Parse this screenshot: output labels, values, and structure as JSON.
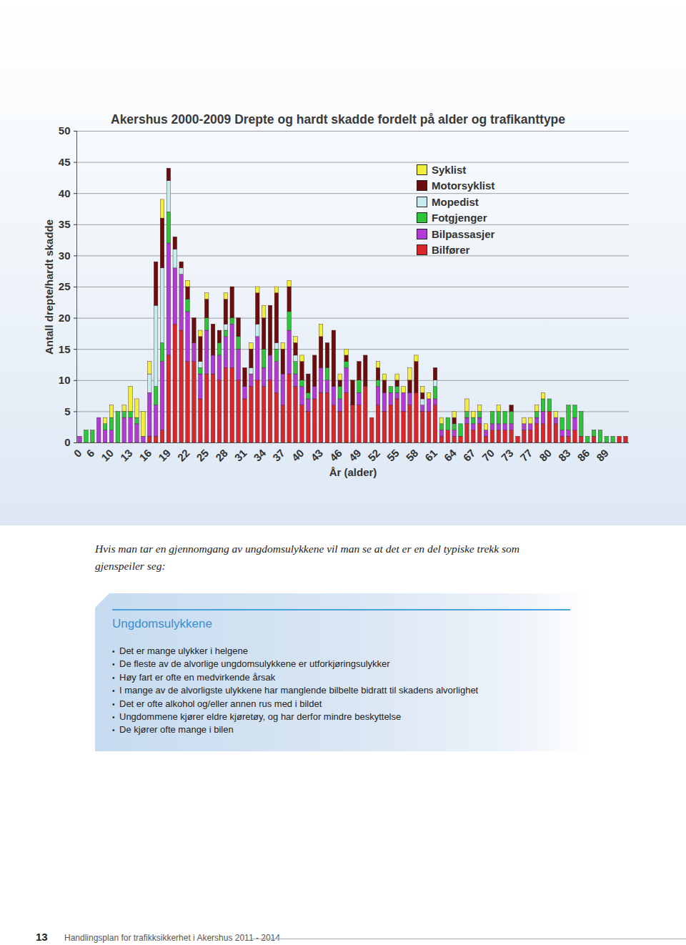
{
  "chart_data": {
    "type": "bar",
    "title": "Akershus 2000-2009 Drepte og hardt skadde fordelt på alder og trafikanttype",
    "ylabel": "Antall drepte/hardt skadde",
    "xlabel": "År (alder)",
    "categories": [
      "0",
      null,
      "6",
      null,
      null,
      "10",
      null,
      null,
      "13",
      null,
      null,
      "16",
      null,
      null,
      "19",
      null,
      null,
      "22",
      null,
      null,
      "25",
      null,
      null,
      "28",
      null,
      null,
      "31",
      null,
      null,
      "34",
      null,
      null,
      "37",
      null,
      null,
      "40",
      null,
      null,
      "43",
      null,
      null,
      "46",
      null,
      null,
      "49",
      null,
      null,
      "52",
      null,
      null,
      "55",
      null,
      null,
      "58",
      null,
      null,
      "61",
      null,
      null,
      "64",
      null,
      null,
      "67",
      null,
      null,
      "70",
      null,
      null,
      "73",
      null,
      null,
      "77",
      null,
      null,
      "80",
      null,
      null,
      "83",
      null,
      null,
      "86",
      null,
      null,
      "89",
      null,
      null,
      null
    ],
    "series": [
      {
        "name": "Bilfører",
        "color": "#d8262b",
        "values": [
          0,
          0,
          0,
          0,
          0,
          0,
          0,
          0,
          0,
          0,
          0,
          1,
          1,
          2,
          14,
          19,
          18,
          13,
          13,
          7,
          11,
          11,
          10,
          12,
          12,
          10,
          7,
          9,
          10,
          9,
          10,
          8,
          6,
          11,
          9,
          6,
          5,
          7,
          8,
          8,
          6,
          5,
          8,
          6,
          6,
          9,
          4,
          6,
          5,
          6,
          7,
          5,
          6,
          8,
          5,
          5,
          6,
          1,
          2,
          1,
          1,
          3,
          2,
          3,
          1,
          2,
          2,
          2,
          2,
          1,
          2,
          2,
          3,
          3,
          5,
          3,
          1,
          1,
          2,
          1,
          0,
          1,
          0,
          0,
          0,
          1,
          1
        ]
      },
      {
        "name": "Bilpassasjer",
        "color": "#b23ad6",
        "values": [
          1,
          0,
          0,
          4,
          2,
          2,
          0,
          4,
          4,
          3,
          1,
          7,
          5,
          11,
          18,
          9,
          9,
          8,
          3,
          4,
          7,
          3,
          4,
          5,
          7,
          5,
          2,
          2,
          7,
          3,
          4,
          5,
          5,
          7,
          2,
          3,
          2,
          2,
          4,
          2,
          3,
          2,
          4,
          0,
          2,
          0,
          0,
          3,
          3,
          2,
          1,
          3,
          2,
          0,
          1,
          2,
          1,
          1,
          0,
          1,
          0,
          1,
          1,
          1,
          1,
          1,
          1,
          1,
          1,
          0,
          1,
          1,
          1,
          2,
          0,
          1,
          1,
          1,
          2,
          0,
          0,
          0,
          0,
          0,
          0,
          0,
          0
        ]
      },
      {
        "name": "Fotgjenger",
        "color": "#2ec43c",
        "values": [
          0,
          2,
          2,
          0,
          1,
          2,
          5,
          1,
          1,
          1,
          0,
          0,
          3,
          3,
          5,
          0,
          0,
          2,
          0,
          1,
          2,
          0,
          2,
          1,
          1,
          2,
          0,
          0,
          0,
          3,
          0,
          2,
          0,
          3,
          2,
          1,
          1,
          0,
          0,
          2,
          0,
          2,
          1,
          0,
          2,
          0,
          0,
          1,
          0,
          1,
          1,
          0,
          0,
          0,
          0,
          0,
          2,
          1,
          2,
          1,
          2,
          1,
          1,
          1,
          0,
          2,
          2,
          2,
          2,
          0,
          0,
          0,
          1,
          2,
          2,
          0,
          2,
          4,
          2,
          4,
          1,
          1,
          2,
          1,
          1,
          0,
          0
        ]
      },
      {
        "name": "Mopedist",
        "color": "#c7ecf0",
        "values": [
          0,
          0,
          0,
          0,
          0,
          0,
          0,
          0,
          0,
          0,
          0,
          3,
          13,
          12,
          5,
          3,
          1,
          0,
          0,
          1,
          0,
          0,
          0,
          1,
          0,
          0,
          0,
          1,
          2,
          0,
          0,
          1,
          0,
          0,
          1,
          0,
          0,
          0,
          0,
          0,
          0,
          0,
          0,
          0,
          0,
          0,
          0,
          0,
          0,
          0,
          0,
          0,
          0,
          0,
          1,
          0,
          1,
          0,
          0,
          0,
          0,
          0,
          0,
          0,
          0,
          0,
          0,
          0,
          0,
          0,
          0,
          0,
          0,
          0,
          0,
          0,
          0,
          0,
          0,
          0,
          0,
          0,
          0,
          0,
          0,
          0,
          0
        ]
      },
      {
        "name": "Motorsyklist",
        "color": "#6b0d0d",
        "values": [
          0,
          0,
          0,
          0,
          0,
          0,
          0,
          0,
          0,
          0,
          0,
          0,
          7,
          8,
          2,
          2,
          1,
          2,
          4,
          4,
          3,
          5,
          2,
          4,
          5,
          3,
          3,
          3,
          5,
          5,
          8,
          8,
          4,
          4,
          2,
          3,
          3,
          5,
          5,
          4,
          9,
          1,
          1,
          4,
          3,
          5,
          0,
          2,
          2,
          0,
          1,
          0,
          2,
          5,
          1,
          0,
          2,
          0,
          0,
          1,
          0,
          0,
          0,
          0,
          0,
          0,
          0,
          0,
          1,
          0,
          0,
          0,
          0,
          0,
          0,
          0,
          0,
          0,
          0,
          0,
          0,
          0,
          0,
          0,
          0,
          0,
          0
        ]
      },
      {
        "name": "Syklist",
        "color": "#f2ee3c",
        "values": [
          0,
          0,
          0,
          0,
          1,
          2,
          0,
          1,
          4,
          3,
          4,
          2,
          0,
          3,
          0,
          0,
          0,
          1,
          0,
          1,
          1,
          0,
          0,
          1,
          0,
          0,
          0,
          1,
          1,
          2,
          0,
          1,
          1,
          1,
          1,
          1,
          0,
          0,
          2,
          0,
          0,
          1,
          1,
          0,
          0,
          0,
          0,
          1,
          1,
          0,
          1,
          1,
          2,
          1,
          1,
          1,
          0,
          1,
          0,
          1,
          0,
          2,
          1,
          1,
          1,
          0,
          1,
          0,
          0,
          0,
          1,
          1,
          1,
          1,
          0,
          1,
          0,
          0,
          0,
          0,
          0,
          0,
          0,
          0,
          0,
          0,
          0
        ]
      }
    ],
    "ylim": [
      0,
      50
    ],
    "yticks": [
      0,
      5,
      10,
      15,
      20,
      25,
      30,
      35,
      40,
      45,
      50
    ],
    "grid": true,
    "stacked": true,
    "legend": "top-right"
  },
  "document": {
    "intro": "Hvis man tar en gjennomgang av ungdomsulykkene vil man se at det er en del typiske trekk som gjenspeiler seg:",
    "box": {
      "title": "Ungdomsulykkene",
      "items": [
        "Det er mange ulykker i helgene",
        "De fleste av de alvorlige ungdomsulykkene er utforkjøringsulykker",
        "Høy fart er ofte en medvirkende årsak",
        "I mange av de alvorligste ulykkene har manglende bilbelte bidratt til skadens alvorlighet",
        "Det er ofte alkohol og/eller annen rus med i bildet",
        "Ungdommene kjører eldre kjøretøy, og har derfor mindre beskyttelse",
        "De kjører ofte mange i bilen"
      ]
    },
    "footer": {
      "page": "13",
      "text": "Handlingsplan for trafikksikkerhet i Akershus 2011 - 2014"
    }
  }
}
